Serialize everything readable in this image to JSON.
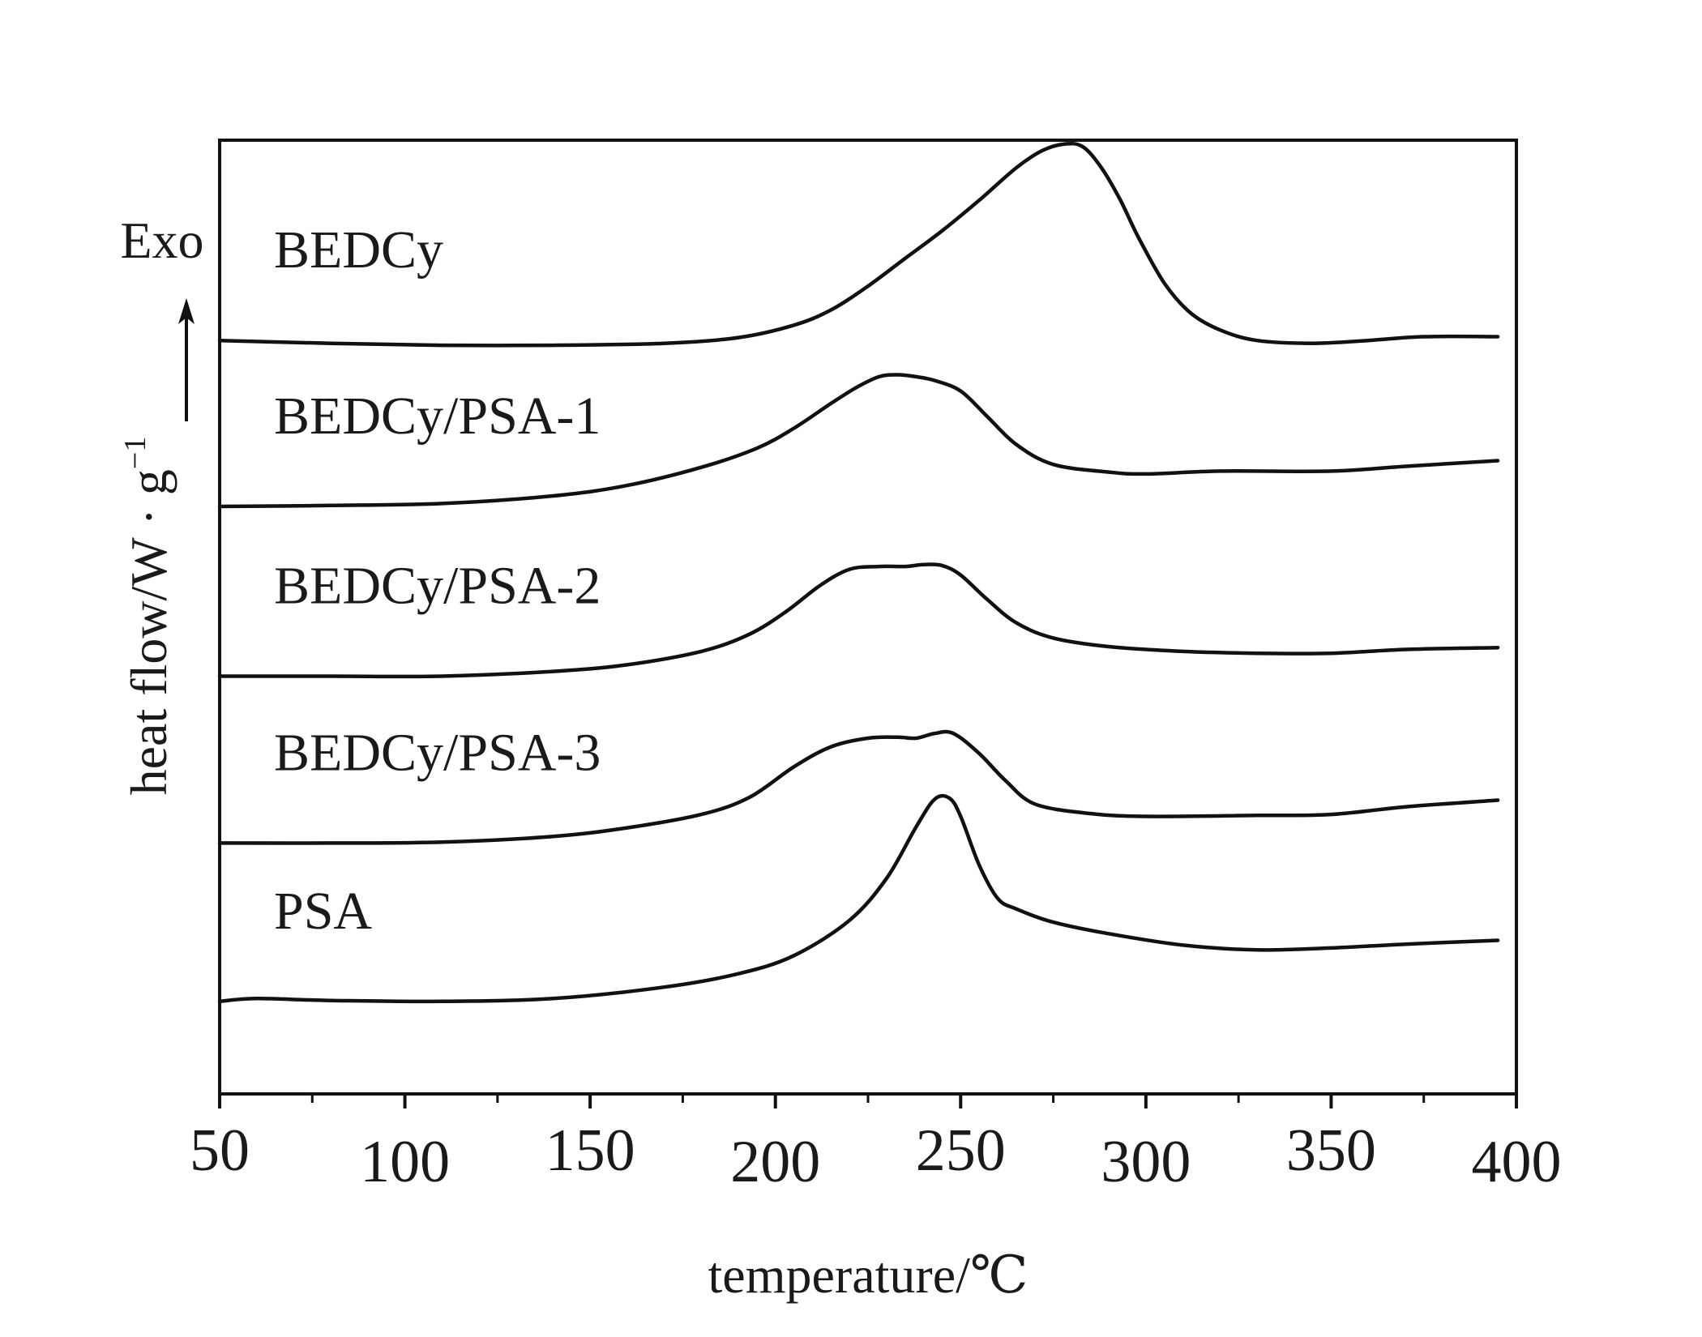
{
  "chart_data": {
    "type": "line",
    "title": "",
    "xlabel": "temperature/℃",
    "ylabel": "heat flow/W · g",
    "ylabel_superscript": "−1",
    "exo_label": "Exo",
    "xlim": [
      50,
      400
    ],
    "xticks": [
      50,
      100,
      150,
      200,
      250,
      300,
      350,
      400
    ],
    "minor_ticks": true,
    "grid": false,
    "legend": "none; series names written beside curves",
    "y_values_note": "arbitrary units, curves vertically offset",
    "ylim": [
      0,
      100
    ],
    "series": [
      {
        "name": "BEDCy",
        "x": [
          50,
          80,
          110,
          140,
          170,
          190,
          205,
          215,
          225,
          235,
          245,
          255,
          265,
          272,
          278,
          283,
          288,
          293,
          298,
          305,
          312,
          320,
          330,
          345,
          360,
          375,
          395
        ],
        "y": [
          79.0,
          78.7,
          78.5,
          78.5,
          78.7,
          79.3,
          80.6,
          82.2,
          84.7,
          87.6,
          90.5,
          93.7,
          97.1,
          98.9,
          99.6,
          99.3,
          97.1,
          93.8,
          89.8,
          85.0,
          81.9,
          80.1,
          79.0,
          78.7,
          79.0,
          79.4,
          79.4
        ]
      },
      {
        "name": "BEDCy/PSA-1",
        "x": [
          50,
          80,
          110,
          140,
          160,
          180,
          195,
          205,
          215,
          222,
          228,
          233,
          238,
          243,
          250,
          257,
          265,
          275,
          290,
          300,
          320,
          350,
          370,
          395
        ],
        "y": [
          61.6,
          61.7,
          61.9,
          62.7,
          63.8,
          65.7,
          67.7,
          69.8,
          72.4,
          74.1,
          75.2,
          75.4,
          75.2,
          74.8,
          73.7,
          71.1,
          68.1,
          66.0,
          65.2,
          65.0,
          65.3,
          65.3,
          65.8,
          66.4
        ]
      },
      {
        "name": "BEDCy/PSA-2",
        "x": [
          50,
          80,
          110,
          140,
          160,
          180,
          193,
          203,
          212,
          220,
          228,
          235,
          240,
          245,
          250,
          257,
          265,
          275,
          290,
          310,
          330,
          350,
          370,
          395
        ],
        "y": [
          43.8,
          43.8,
          43.8,
          44.3,
          45.0,
          46.4,
          48.2,
          50.6,
          53.3,
          55.0,
          55.3,
          55.3,
          55.5,
          55.4,
          54.4,
          51.9,
          49.4,
          47.8,
          46.9,
          46.4,
          46.2,
          46.2,
          46.6,
          46.8
        ]
      },
      {
        "name": "BEDCy/PSA-3",
        "x": [
          50,
          80,
          110,
          140,
          160,
          180,
          193,
          205,
          215,
          225,
          233,
          238,
          243,
          248,
          255,
          262,
          270,
          285,
          300,
          330,
          350,
          370,
          395
        ],
        "y": [
          26.3,
          26.3,
          26.4,
          27.0,
          27.9,
          29.3,
          31.1,
          34.3,
          36.4,
          37.3,
          37.4,
          37.3,
          37.8,
          37.8,
          35.7,
          32.9,
          30.4,
          29.4,
          29.1,
          29.2,
          29.3,
          30.1,
          30.8
        ]
      },
      {
        "name": "PSA",
        "x": [
          50,
          60,
          80,
          110,
          140,
          170,
          190,
          205,
          220,
          230,
          238,
          243,
          247,
          250,
          255,
          260,
          265,
          275,
          290,
          310,
          330,
          350,
          370,
          395
        ],
        "y": [
          9.7,
          10.0,
          9.8,
          9.7,
          10.0,
          11.2,
          12.6,
          14.5,
          18.2,
          22.6,
          28.0,
          30.9,
          31.0,
          29.1,
          24.0,
          20.5,
          19.4,
          18.0,
          16.8,
          15.6,
          15.1,
          15.3,
          15.7,
          16.1
        ]
      }
    ]
  }
}
